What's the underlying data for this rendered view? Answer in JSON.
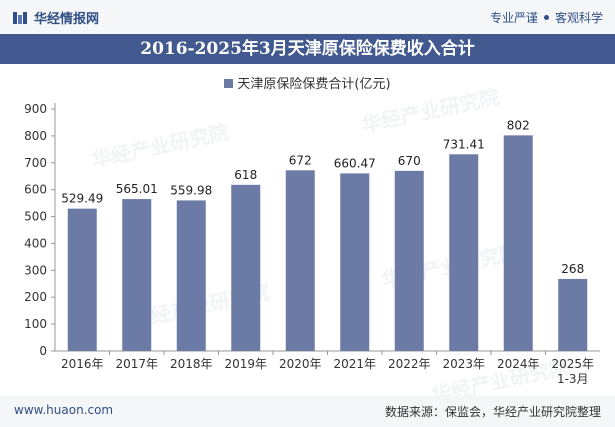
{
  "header": {
    "brand": "华经情报网",
    "slogan_left": "专业严谨",
    "slogan_right": "客观科学"
  },
  "title": "2016-2025年3月天津原保险保费收入合计",
  "legend": {
    "label": "天津原保险保费合计(亿元)"
  },
  "footer": {
    "website": "www.huaon.com",
    "source": "数据来源：保监会，华经产业研究院整理"
  },
  "watermark": {
    "text": "华经产业研究院",
    "url": "www.huaon.com"
  },
  "colors": {
    "bar": "#6c7ba6",
    "titlebar": "#41598f",
    "brand": "#2f4f86"
  },
  "chart_data": {
    "type": "bar",
    "title": "2016-2025年3月天津原保险保费收入合计",
    "categories": [
      "2016年",
      "2017年",
      "2018年",
      "2019年",
      "2020年",
      "2021年",
      "2022年",
      "2023年",
      "2024年",
      "2025年\n1-3月"
    ],
    "series": [
      {
        "name": "天津原保险保费合计(亿元)",
        "values": [
          529.49,
          565.01,
          559.98,
          618,
          672,
          660.47,
          670,
          731.41,
          802,
          268
        ]
      }
    ],
    "data_labels": [
      "529.49",
      "565.01",
      "559.98",
      "618",
      "672",
      "660.47",
      "670",
      "731.41",
      "802",
      "268"
    ],
    "ylim": [
      0,
      900
    ],
    "yticks": [
      0,
      100,
      200,
      300,
      400,
      500,
      600,
      700,
      800,
      900
    ],
    "grid": false,
    "legend_position": "top-center"
  }
}
